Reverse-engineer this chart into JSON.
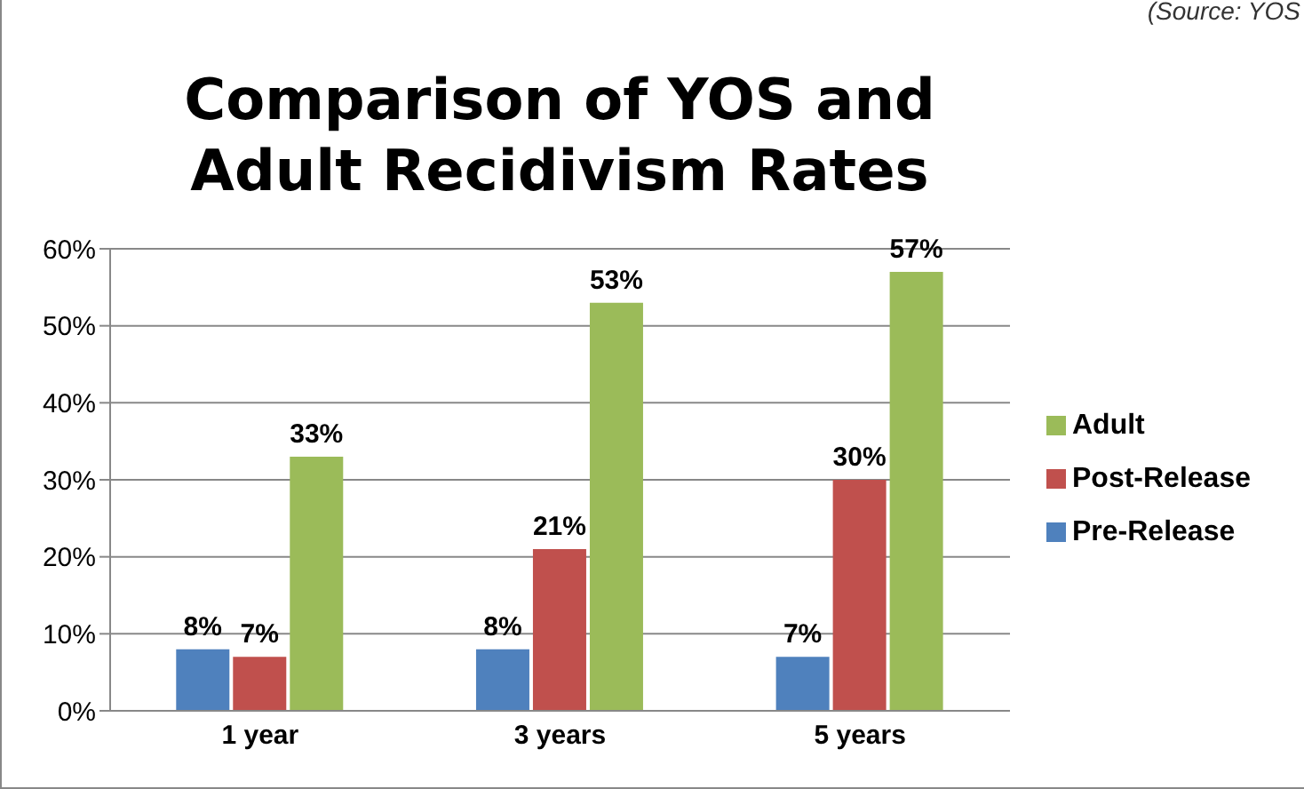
{
  "chart_data": {
    "type": "bar",
    "title": "Comparison of YOS and Adult Recidivism Rates",
    "annotations": [
      "(Source: YOS"
    ],
    "categories": [
      "1 year",
      "3 years",
      "5 years"
    ],
    "series": [
      {
        "name": "Pre-Release",
        "color": "#4f81bd",
        "values": [
          8,
          8,
          7
        ],
        "value_labels": [
          "8%",
          "8%",
          "7%"
        ]
      },
      {
        "name": "Post-Release",
        "color": "#c0504d",
        "values": [
          7,
          21,
          30
        ],
        "value_labels": [
          "7%",
          "21%",
          "30%"
        ]
      },
      {
        "name": "Adult",
        "color": "#9bbb59",
        "values": [
          33,
          53,
          57
        ],
        "value_labels": [
          "33%",
          "53%",
          "57%"
        ]
      }
    ],
    "ylim": [
      0,
      60
    ],
    "yticks": [
      {
        "value": 0,
        "label": "0%"
      },
      {
        "value": 10,
        "label": "10%"
      },
      {
        "value": 20,
        "label": "20%"
      },
      {
        "value": 30,
        "label": "30%"
      },
      {
        "value": 40,
        "label": "40%"
      },
      {
        "value": 50,
        "label": "50%"
      },
      {
        "value": 60,
        "label": "60%"
      }
    ],
    "grid": "y",
    "legend": "right"
  }
}
